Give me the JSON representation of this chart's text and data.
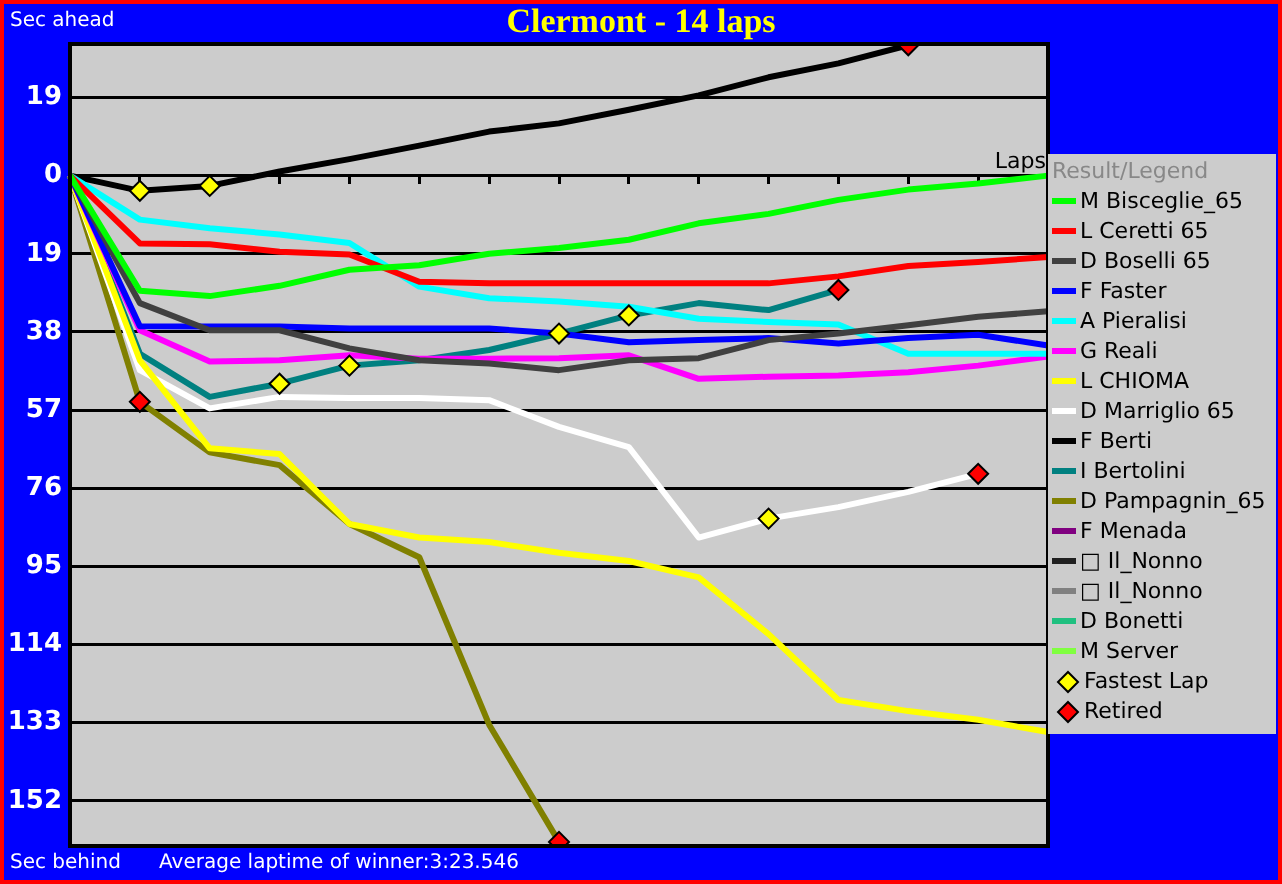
{
  "chart_data": {
    "type": "line",
    "title": "Clermont - 14 laps",
    "ylabel": "Sec ahead",
    "xlabel": "Laps",
    "legend_title": "Result/Legend",
    "legend": "right",
    "grid": "y",
    "tick_labels": "y",
    "annotations": [
      "Sec behind",
      "Average laptime of winner:3:23.546"
    ],
    "ylim": [
      -163,
      32
    ],
    "yticks": [
      19,
      0,
      {
        "value": -19,
        "label": "19"
      },
      {
        "value": -38,
        "label": "38"
      },
      {
        "value": -57,
        "label": "57"
      },
      {
        "value": -76,
        "label": "76"
      },
      {
        "value": -95,
        "label": "95"
      },
      {
        "value": -114,
        "label": "114"
      },
      {
        "value": -133,
        "label": "133"
      },
      {
        "value": -152,
        "label": "152"
      }
    ],
    "categories": [
      null,
      null,
      null,
      null,
      null,
      null,
      null,
      null,
      null,
      null,
      null,
      null,
      null,
      null,
      null
    ],
    "series": [
      {
        "name": "M Bisceglie_65",
        "color": "#00ff00",
        "values": [
          0,
          -28,
          -29.3,
          -26.8,
          -22.9,
          -21.8,
          -19,
          -17.6,
          -15.6,
          -11.6,
          -9.3,
          -5.9,
          -3.4,
          -1.9,
          0
        ]
      },
      {
        "name": "L Ceretti 65",
        "color": "#ff0000",
        "values": [
          0,
          -16.5,
          -16.7,
          -18.5,
          -19.2,
          -25.8,
          -26.2,
          -26.2,
          -26.2,
          -26.2,
          -26.2,
          -24.5,
          -22,
          -21,
          -19.8
        ]
      },
      {
        "name": "D Boselli 65",
        "color": "#404040",
        "values": [
          0,
          -31,
          -37.6,
          -37.6,
          -42,
          -44.9,
          -45.7,
          -47.3,
          -44.9,
          -44.4,
          -40,
          -38.4,
          -36.4,
          -34.3,
          -33
        ]
      },
      {
        "name": "F Faster",
        "color": "#0000ff",
        "values": [
          0,
          -36.6,
          -36.7,
          -36.7,
          -37.2,
          -37.2,
          -37.2,
          -38.4,
          -40.5,
          -40,
          -39.5,
          -40.8,
          -39.5,
          -38.7,
          -41.3
        ]
      },
      {
        "name": "A Pieralisi",
        "color": "#00ffff",
        "values": [
          0,
          -10.7,
          -12.8,
          -14.3,
          -16.4,
          -27,
          -29.8,
          -30.6,
          -31.9,
          -34.8,
          -35.6,
          -36.2,
          -43.3,
          -43.3,
          -43.3
        ]
      },
      {
        "name": "G Reali",
        "color": "#ff00ff",
        "values": [
          0,
          -37.6,
          -45.2,
          -44.9,
          -43.7,
          -44.5,
          -44.5,
          -44.4,
          -43.7,
          -49.4,
          -48.9,
          -48.6,
          -47.8,
          -46.2,
          -44
        ]
      },
      {
        "name": "L CHIOMA",
        "color": "#ffff00",
        "values": [
          0,
          -44.9,
          -66.3,
          -67.7,
          -84.7,
          -88,
          -89.1,
          -91.7,
          -93.7,
          -97.7,
          -111.5,
          -127.5,
          -130.2,
          -132.3,
          -135.3
        ]
      },
      {
        "name": "D Marriglio 65",
        "color": "#ffffff",
        "values": [
          0,
          -47.3,
          -56.6,
          -53.8,
          -54.1,
          -54.1,
          -54.6,
          -61.1,
          -66,
          -88,
          -83.4,
          -80.6,
          -76.9,
          -72.5,
          null
        ]
      },
      {
        "name": "F Berti",
        "color": "#000000",
        "values": [
          0,
          -3.7,
          -2.5,
          1,
          4,
          7.3,
          10.7,
          12.7,
          16,
          19.5,
          23.9,
          27.3,
          31.7,
          null,
          null
        ]
      },
      {
        "name": "I Bertolini",
        "color": "#008080",
        "values": [
          0,
          -43.3,
          -53.8,
          -50.6,
          -46.2,
          -44.9,
          -42.4,
          -38.4,
          -34,
          -31,
          -32.7,
          -27.8,
          null,
          null,
          null
        ]
      },
      {
        "name": "D Pampagnin_65",
        "color": "#808000",
        "values": [
          0,
          -55,
          -67.3,
          -70.4,
          -84.7,
          -92.8,
          -133.5,
          -162,
          null,
          null,
          null,
          null,
          null,
          null,
          null
        ]
      },
      {
        "name": "F Menada",
        "color": "#800080",
        "values": [
          null,
          null,
          null,
          null,
          null,
          null,
          null,
          null,
          null,
          null,
          null,
          null,
          null,
          null,
          null
        ]
      },
      {
        "name": "□ Il_Nonno",
        "color": "#202020",
        "values": [
          null,
          null,
          null,
          null,
          null,
          null,
          null,
          null,
          null,
          null,
          null,
          null,
          null,
          null,
          null
        ]
      },
      {
        "name": "□ Il_Nonno",
        "color": "#808080",
        "values": [
          null,
          null,
          null,
          null,
          null,
          null,
          null,
          null,
          null,
          null,
          null,
          null,
          null,
          null,
          null
        ]
      },
      {
        "name": "D Bonetti",
        "color": "#20c080",
        "values": [
          null,
          null,
          null,
          null,
          null,
          null,
          null,
          null,
          null,
          null,
          null,
          null,
          null,
          null,
          null
        ]
      },
      {
        "name": "M Server",
        "color": "#80ff40",
        "values": [
          null,
          null,
          null,
          null,
          null,
          null,
          null,
          null,
          null,
          null,
          null,
          null,
          null,
          null,
          null
        ]
      },
      {
        "name": "Fastest Lap",
        "type": "scatter",
        "marker": "diamond",
        "color": "#ffff00",
        "values": [
          null,
          -3.7,
          -2.5,
          -50.6,
          -46.2,
          null,
          null,
          -38.4,
          -34,
          null,
          -83.4,
          null,
          null,
          null,
          null
        ]
      },
      {
        "name": "Retired",
        "type": "scatter",
        "marker": "diamond",
        "color": "#ff0000",
        "values": [
          null,
          -55,
          null,
          null,
          null,
          null,
          null,
          -162,
          null,
          null,
          null,
          -27.8,
          31.7,
          -72.5,
          null
        ]
      }
    ]
  }
}
